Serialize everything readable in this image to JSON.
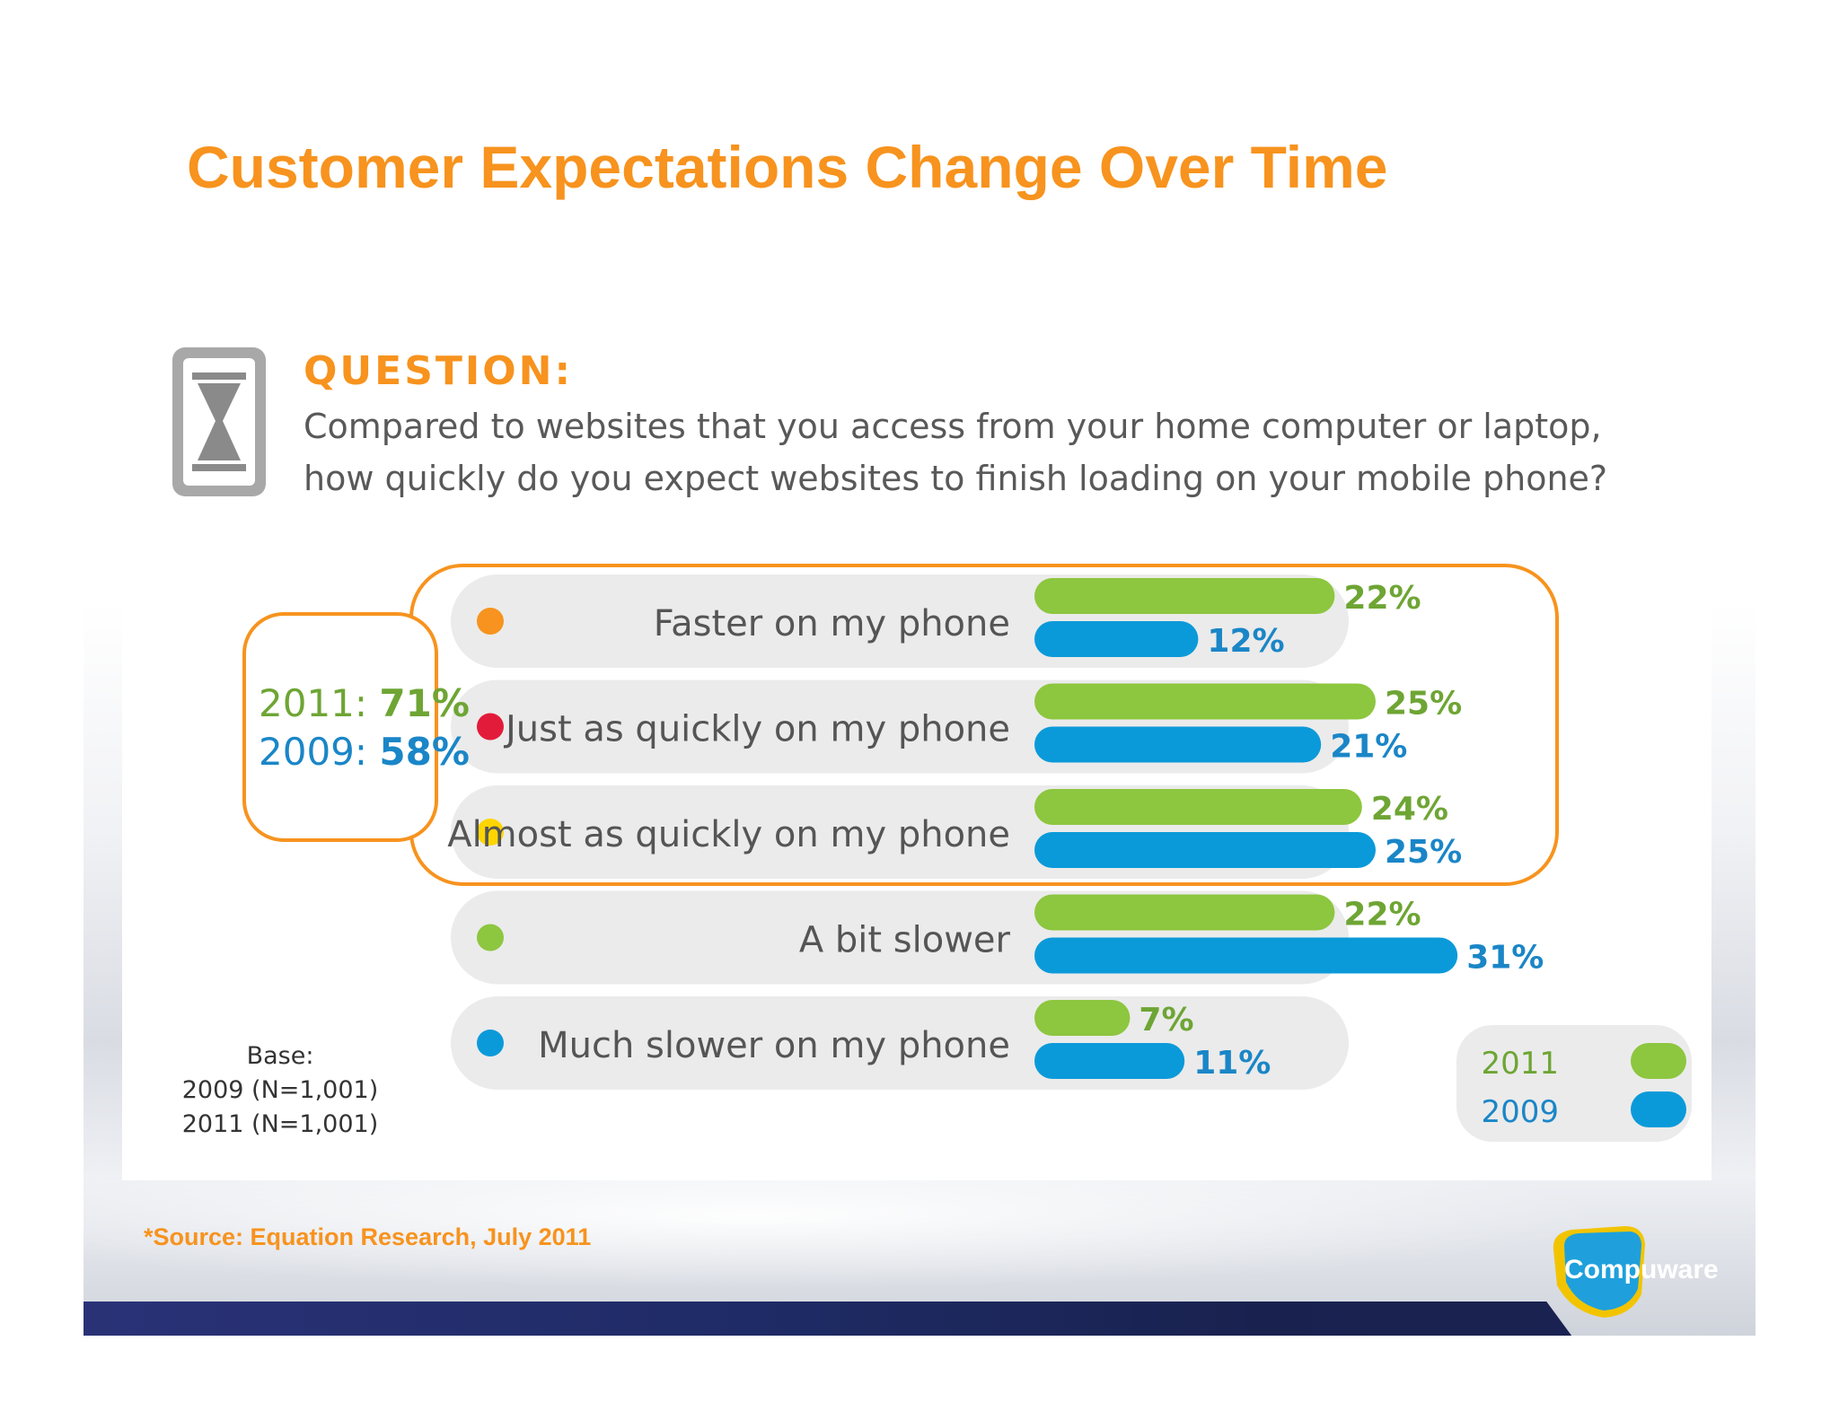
{
  "slide": {
    "title": "Customer Expectations Change Over Time",
    "source": "*Source: Equation Research, July 2011",
    "logo_text": "Compuware"
  },
  "question": {
    "heading": "QUESTION:",
    "line1": "Compared to websites that you access from your home computer or laptop,",
    "line2": "how quickly do you expect websites to finish loading on your mobile phone?"
  },
  "base": {
    "label": "Base:",
    "line2009": "2009 (N=1,001)",
    "line2011": "2011 (N=1,001)"
  },
  "summary": {
    "label_2011": "2011: ",
    "value_2011": "71%",
    "label_2009": "2009: ",
    "value_2009": "58%"
  },
  "colors": {
    "orange": "#f7931e",
    "green": "#8dc63f",
    "blue": "#0b9ad9",
    "green_text": "#6ea534",
    "blue_text": "#1a86c7",
    "label_gray": "#555555",
    "row_gray": "#ebebeb"
  },
  "chart_data": {
    "type": "bar",
    "orientation": "horizontal",
    "categories": [
      "Faster on my phone",
      "Just as quickly on my phone",
      "Almost as quickly on my phone",
      "A bit slower",
      "Much slower on my phone"
    ],
    "category_dot_colors": [
      "#f7931e",
      "#e31b3a",
      "#ffd500",
      "#8dc63f",
      "#0b9ad9"
    ],
    "series": [
      {
        "name": "2011",
        "color": "#8dc63f",
        "values": [
          22,
          25,
          24,
          22,
          7
        ]
      },
      {
        "name": "2009",
        "color": "#0b9ad9",
        "values": [
          12,
          21,
          25,
          31,
          11
        ]
      }
    ],
    "value_suffix": "%",
    "xlim": [
      0,
      31
    ],
    "legend": {
      "position": "bottom-right",
      "entries": [
        "2011",
        "2009"
      ]
    },
    "highlight_group": "first three categories"
  }
}
